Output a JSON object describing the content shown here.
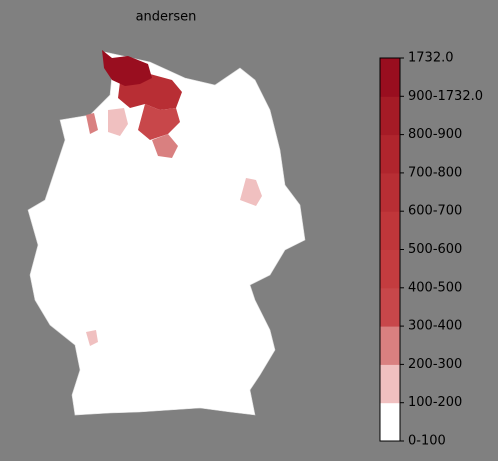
{
  "title": "andersen",
  "colorbar": {
    "labels": [
      "0-100",
      "100-200",
      "200-300",
      "300-400",
      "400-500",
      "500-600",
      "600-700",
      "700-800",
      "800-900",
      "900-1732.0",
      "1732.0"
    ],
    "colors": [
      "#ffffff",
      "#f0c0c0",
      "#d98080",
      "#c8474a",
      "#c43c3f",
      "#c0363a",
      "#b82e34",
      "#b0252d",
      "#a51b26",
      "#990e1f"
    ]
  }
}
